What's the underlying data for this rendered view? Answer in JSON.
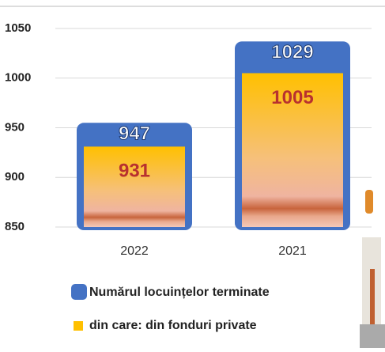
{
  "chart_data": {
    "type": "bar",
    "categories": [
      "2022",
      "2021"
    ],
    "series": [
      {
        "name": "Numărul locuințelor terminate",
        "color": "#4472c4",
        "values": [
          947,
          1029
        ]
      },
      {
        "name": "din care: din fonduri private",
        "color": "#ffc000",
        "values": [
          931,
          1005
        ]
      }
    ],
    "ylim": [
      850,
      1050
    ],
    "yticks": [
      850,
      900,
      950,
      1000,
      1050
    ],
    "grid": true
  }
}
